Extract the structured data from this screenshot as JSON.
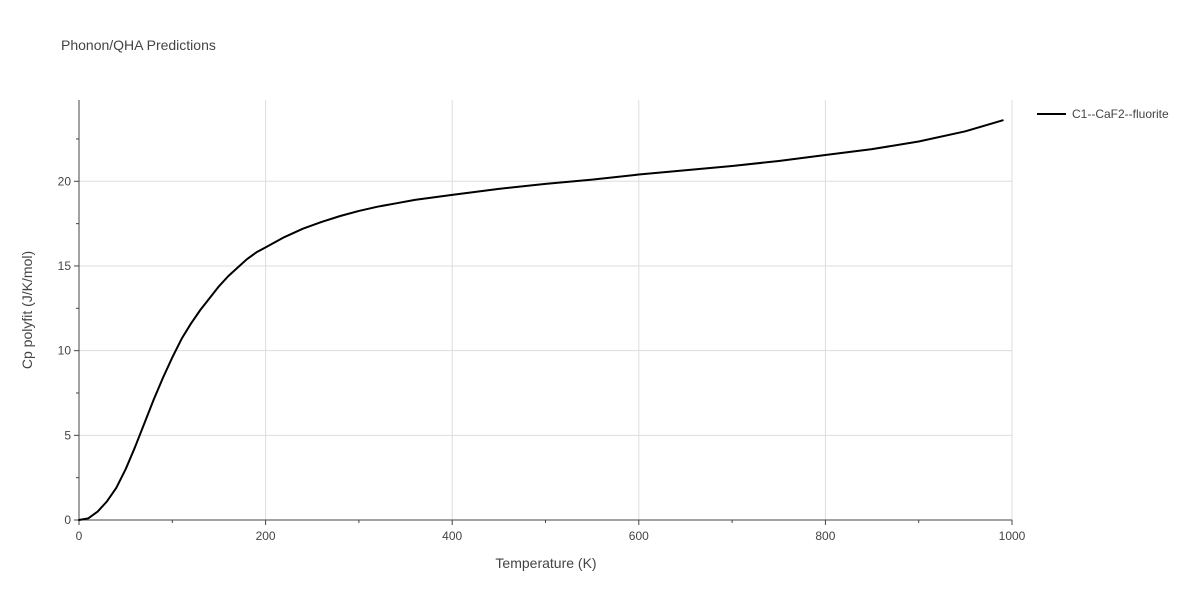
{
  "chart_data": {
    "type": "line",
    "title": "Phonon/QHA Predictions",
    "xlabel": "Temperature (K)",
    "ylabel": "Cp polyfit (J/K/mol)",
    "xlim": [
      0,
      1000
    ],
    "ylim": [
      0,
      24.8
    ],
    "x_ticks": [
      0,
      200,
      400,
      600,
      800,
      1000
    ],
    "y_ticks": [
      0,
      5,
      10,
      15,
      20
    ],
    "grid": true,
    "legend_position": "top-right",
    "series": [
      {
        "name": "C1--CaF2--fluorite",
        "color": "#000000",
        "x": [
          0,
          10,
          20,
          30,
          40,
          50,
          60,
          70,
          80,
          90,
          100,
          110,
          120,
          130,
          140,
          150,
          160,
          170,
          180,
          190,
          200,
          220,
          240,
          260,
          280,
          300,
          320,
          340,
          360,
          380,
          400,
          450,
          500,
          550,
          600,
          650,
          700,
          750,
          800,
          850,
          900,
          950,
          990
        ],
        "y": [
          0,
          0.1,
          0.5,
          1.1,
          1.9,
          3.0,
          4.3,
          5.7,
          7.1,
          8.4,
          9.6,
          10.7,
          11.6,
          12.4,
          13.1,
          13.8,
          14.4,
          14.9,
          15.4,
          15.8,
          16.1,
          16.7,
          17.2,
          17.6,
          17.95,
          18.25,
          18.5,
          18.7,
          18.9,
          19.05,
          19.2,
          19.55,
          19.85,
          20.1,
          20.4,
          20.65,
          20.9,
          21.2,
          21.55,
          21.9,
          22.35,
          22.95,
          23.6
        ]
      }
    ]
  }
}
